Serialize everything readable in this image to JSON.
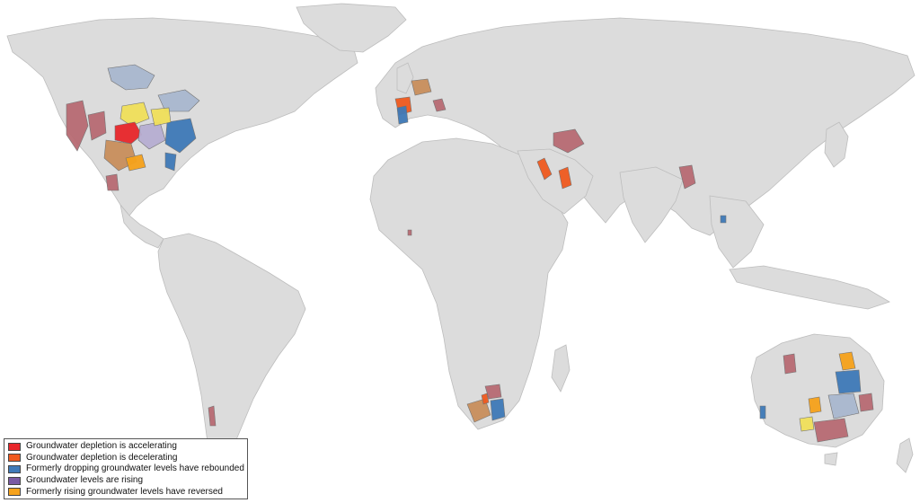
{
  "colors": {
    "land": "#dcdcdc",
    "ocean": "#ffffff",
    "accelerating": "#e8262b",
    "decelerating": "#f05a1f",
    "rebounded": "#3f7ab8",
    "rising": "#7a5aa3",
    "reversed": "#f6a21b",
    "mixed_mauve": "#b86b73",
    "mixed_tan": "#c98f5c",
    "mixed_lightblue": "#a9b8cf",
    "mixed_yellow": "#f1e05a",
    "mixed_lilac": "#b7aed2"
  },
  "legend": {
    "items": [
      {
        "key": "accelerating",
        "label": "Groundwater depletion is accelerating",
        "color": "#e8262b"
      },
      {
        "key": "decelerating",
        "label": "Groundwater depletion is decelerating",
        "color": "#f05a1f"
      },
      {
        "key": "rebounded",
        "label": "Formerly dropping groundwater levels have rebounded",
        "color": "#3f7ab8"
      },
      {
        "key": "rising",
        "label": "Groundwater levels are rising",
        "color": "#7a5aa3"
      },
      {
        "key": "reversed",
        "label": "Formerly rising groundwater levels have reversed",
        "color": "#f6a21b"
      }
    ]
  }
}
